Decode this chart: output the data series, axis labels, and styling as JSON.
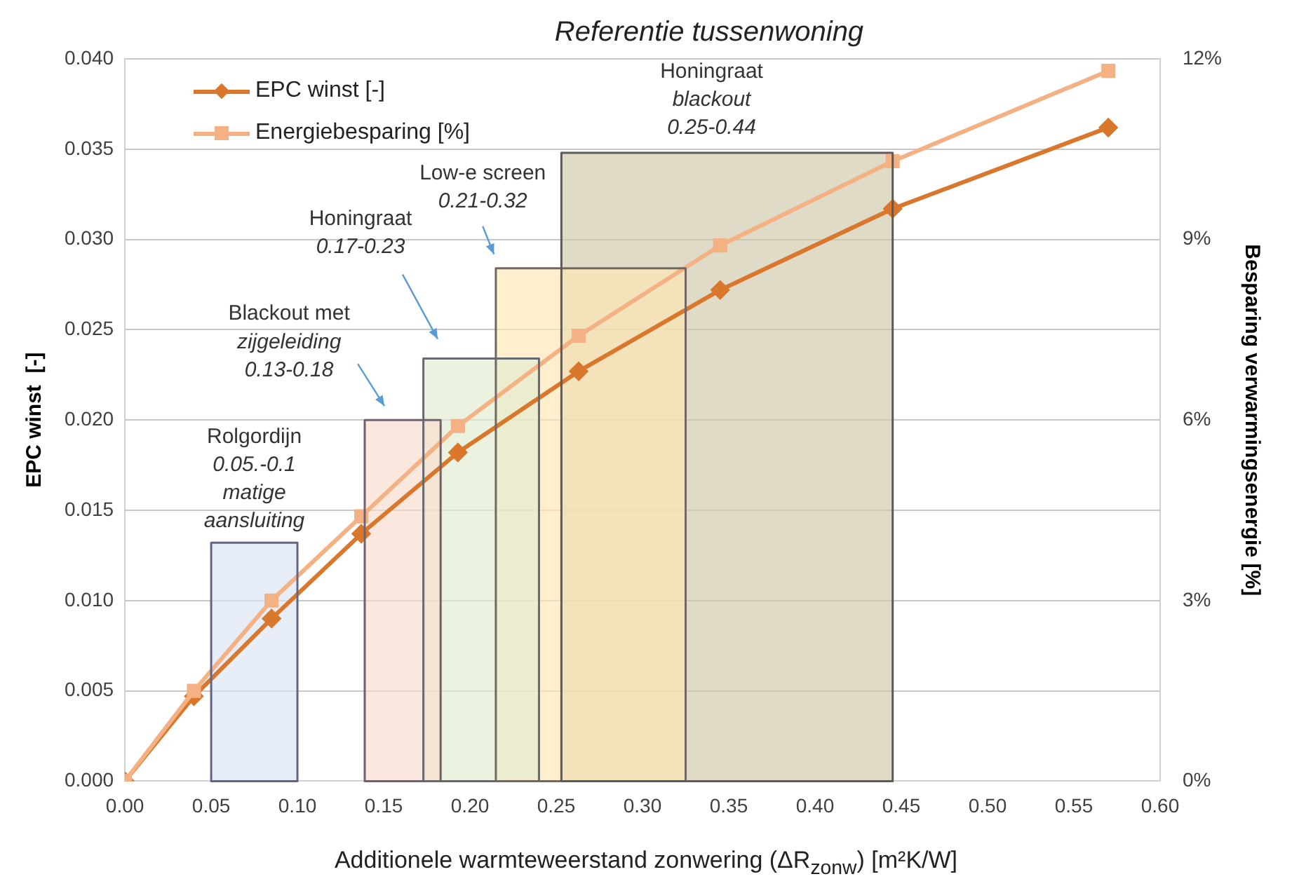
{
  "chart_data": {
    "type": "line",
    "title": "Referentie tussenwoning",
    "xlabel": "Additionele warmteweerstand zonwering (ΔR$_{zonw}$) [m²K/W]",
    "ylabel": "EPC winst  [-]",
    "y2label": "Besparing verwarmingsenergie [%]",
    "xlim": [
      0,
      0.6
    ],
    "xticks": [
      {
        "value": 0,
        "label": "0.00"
      },
      {
        "value": 0.05,
        "label": "0.05"
      },
      {
        "value": 0.1,
        "label": "0.10"
      },
      {
        "value": 0.15,
        "label": "0.15"
      },
      {
        "value": 0.2,
        "label": "0.20"
      },
      {
        "value": 0.25,
        "label": "0.25"
      },
      {
        "value": 0.3,
        "label": "0.30"
      },
      {
        "value": 0.35,
        "label": "0.35"
      },
      {
        "value": 0.4,
        "label": "0.40"
      },
      {
        "value": 0.45,
        "label": "0.45"
      },
      {
        "value": 0.5,
        "label": "0.50"
      },
      {
        "value": 0.55,
        "label": "0.55"
      },
      {
        "value": 0.6,
        "label": "0.60"
      }
    ],
    "ylim": [
      0,
      0.04
    ],
    "yticks": [
      {
        "value": 0,
        "label": "0.000"
      },
      {
        "value": 0.005,
        "label": "0.005"
      },
      {
        "value": 0.01,
        "label": "0.010"
      },
      {
        "value": 0.015,
        "label": "0.015"
      },
      {
        "value": 0.02,
        "label": "0.020"
      },
      {
        "value": 0.025,
        "label": "0.025"
      },
      {
        "value": 0.03,
        "label": "0.030"
      },
      {
        "value": 0.035,
        "label": "0.035"
      },
      {
        "value": 0.04,
        "label": "0.040"
      }
    ],
    "y2lim": [
      0,
      12
    ],
    "y2ticks": [
      {
        "value": 0,
        "label": "0%"
      },
      {
        "value": 3,
        "label": "3%"
      },
      {
        "value": 6,
        "label": "6%"
      },
      {
        "value": 9,
        "label": "9%"
      },
      {
        "value": 12,
        "label": "12%"
      }
    ],
    "grid": "y",
    "legend": "top left",
    "series": [
      {
        "type": "area",
        "color": "#dae3f3",
        "x": [
          0.05,
          0.1
        ],
        "values": [
          0.0132,
          0.0132
        ]
      },
      {
        "type": "area",
        "color": "#f8dccc",
        "x": [
          0.139,
          0.183
        ],
        "values": [
          0.02,
          0.02
        ]
      },
      {
        "type": "area",
        "color": "#e2ebcf",
        "x": [
          0.173,
          0.24
        ],
        "values": [
          0.0234,
          0.0234
        ]
      },
      {
        "type": "area",
        "color": "#ffe6b3",
        "x": [
          0.215,
          0.325
        ],
        "values": [
          0.0284,
          0.0284
        ]
      },
      {
        "type": "area",
        "color": "#cfc8a8",
        "x": [
          0.253,
          0.445
        ],
        "values": [
          0.0348,
          0.0348
        ]
      },
      {
        "name": "EPC winst [-]",
        "color": "#d9782d",
        "marker": "diamond",
        "x": [
          0,
          0.04,
          0.085,
          0.137,
          0.193,
          0.263,
          0.345,
          0.445,
          0.57
        ],
        "values": [
          0,
          0.0047,
          0.009,
          0.0137,
          0.0182,
          0.0227,
          0.0272,
          0.0317,
          0.0362
        ]
      },
      {
        "name": "Energiebesparing [%]",
        "axis": "y2",
        "color": "#f4b183",
        "marker": "square",
        "x": [
          0,
          0.04,
          0.085,
          0.137,
          0.193,
          0.263,
          0.345,
          0.445,
          0.57
        ],
        "values": [
          0,
          1.5,
          3.0,
          4.4,
          5.9,
          7.4,
          8.9,
          10.3,
          11.8
        ]
      }
    ],
    "annotations": [
      "Rolgordijn\n0.05.-0.1\nmatige\naansluiting",
      "Blackout met\nzijgeleiding\n0.13-0.18",
      "Honingraat\n0.17-0.23",
      "Low-e screen\n0.21-0.32",
      "Honingraat\nblackout\n0.25-0.44"
    ]
  }
}
